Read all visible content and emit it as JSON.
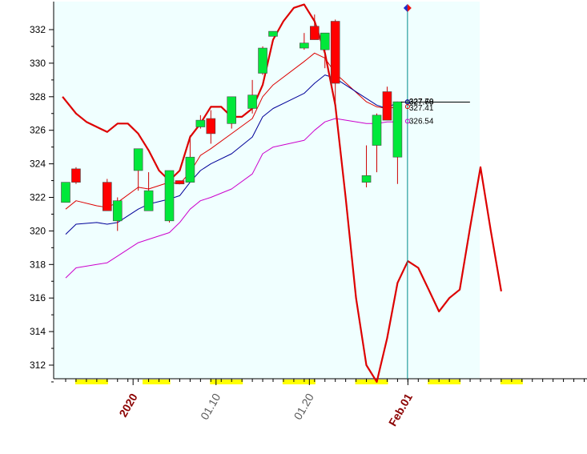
{
  "chart_data": {
    "type": "candlestick",
    "title": "",
    "xlabel": "",
    "ylabel": "",
    "ylim": [
      311,
      333.5
    ],
    "y_ticks": [
      312,
      314,
      316,
      318,
      320,
      322,
      324,
      326,
      328,
      330,
      332
    ],
    "y_tick_labels": [
      "312",
      "314",
      "316",
      "318",
      "320",
      "322",
      "324",
      "326",
      "328",
      "330",
      "332"
    ],
    "x_tick_labels": [
      {
        "text": "2020",
        "index": 6.5,
        "emphasis": true
      },
      {
        "text": "01.10",
        "index": 14.5,
        "emphasis": false
      },
      {
        "text": "01.20",
        "index": 23.5,
        "emphasis": false
      },
      {
        "text": "Feb.01",
        "index": 33,
        "emphasis": true
      }
    ],
    "grid": false,
    "legend": "none",
    "colors": {
      "plot_background": "#f0ffff",
      "up_candle": "#00e83a",
      "down_candle": "#ff0000",
      "wick": "#cc0000",
      "upper_band": "#dd0000",
      "middle_band": "#000099",
      "lower_band": "#cc00cc",
      "cycle_line": "#dd0000",
      "cursor_line": "#008b8b",
      "weekend_marker": "#ffff00"
    },
    "candles": [
      {
        "i": 0,
        "open": 321.7,
        "high": 322.9,
        "low": 321.7,
        "close": 322.9
      },
      {
        "i": 1,
        "open": 323.7,
        "high": 323.8,
        "low": 322.8,
        "close": 322.9
      },
      {
        "i": 4,
        "open": 322.9,
        "high": 323.1,
        "low": 321.2,
        "close": 321.2
      },
      {
        "i": 5,
        "open": 320.6,
        "high": 322.0,
        "low": 320.0,
        "close": 321.8
      },
      {
        "i": 7,
        "open": 323.6,
        "high": 324.9,
        "low": 322.4,
        "close": 324.9
      },
      {
        "i": 8,
        "open": 321.2,
        "high": 323.5,
        "low": 321.2,
        "close": 322.4
      },
      {
        "i": 10,
        "open": 320.6,
        "high": 323.6,
        "low": 320.5,
        "close": 323.6
      },
      {
        "i": 11,
        "open": 323.0,
        "high": 323.0,
        "low": 322.8,
        "close": 322.8
      },
      {
        "i": 12,
        "open": 322.9,
        "high": 325.7,
        "low": 322.9,
        "close": 324.4
      },
      {
        "i": 13,
        "open": 326.2,
        "high": 326.9,
        "low": 326.1,
        "close": 326.6
      },
      {
        "i": 14,
        "open": 326.7,
        "high": 327.2,
        "low": 325.2,
        "close": 325.8
      },
      {
        "i": 16,
        "open": 326.4,
        "high": 328.0,
        "low": 326.1,
        "close": 328.0
      },
      {
        "i": 18,
        "open": 327.3,
        "high": 329.0,
        "low": 327.0,
        "close": 328.1
      },
      {
        "i": 19,
        "open": 329.4,
        "high": 331.0,
        "low": 329.3,
        "close": 330.9
      },
      {
        "i": 20,
        "open": 331.6,
        "high": 331.9,
        "low": 331.6,
        "close": 331.9
      },
      {
        "i": 23,
        "open": 330.9,
        "high": 331.8,
        "low": 330.8,
        "close": 331.2
      },
      {
        "i": 24,
        "open": 332.2,
        "high": 332.9,
        "low": 331.4,
        "close": 331.4
      },
      {
        "i": 25,
        "open": 330.8,
        "high": 331.8,
        "low": 329.7,
        "close": 331.8
      },
      {
        "i": 26,
        "open": 332.5,
        "high": 332.6,
        "low": 327.3,
        "close": 328.8
      },
      {
        "i": 29,
        "open": 322.9,
        "high": 325.1,
        "low": 322.6,
        "close": 323.3
      },
      {
        "i": 30,
        "open": 325.1,
        "high": 327.0,
        "low": 323.5,
        "close": 326.9
      },
      {
        "i": 31,
        "open": 328.3,
        "high": 328.6,
        "low": 326.6,
        "close": 326.6
      },
      {
        "i": 32,
        "open": 324.4,
        "high": 327.7,
        "low": 322.8,
        "close": 327.7
      }
    ],
    "series": [
      {
        "points": [
          [
            0,
            321.3
          ],
          [
            1,
            321.8
          ],
          [
            3,
            321.5
          ],
          [
            4,
            321.4
          ],
          [
            5,
            321.7
          ],
          [
            7,
            322.6
          ],
          [
            8,
            322.5
          ],
          [
            10,
            322.9
          ],
          [
            11,
            322.8
          ],
          [
            12,
            323.5
          ],
          [
            13,
            324.5
          ],
          [
            14,
            324.9
          ],
          [
            16,
            325.8
          ],
          [
            18,
            326.7
          ],
          [
            19,
            328.0
          ],
          [
            20,
            328.7
          ],
          [
            23,
            330.1
          ],
          [
            24,
            330.6
          ],
          [
            25,
            330.3
          ],
          [
            26,
            329.4
          ],
          [
            29,
            327.7
          ],
          [
            30,
            327.4
          ],
          [
            31,
            327.3
          ],
          [
            32,
            327.4
          ]
        ]
      },
      {
        "points": [
          [
            0,
            319.8
          ],
          [
            1,
            320.4
          ],
          [
            3,
            320.5
          ],
          [
            4,
            320.4
          ],
          [
            5,
            320.5
          ],
          [
            7,
            321.3
          ],
          [
            8,
            321.6
          ],
          [
            10,
            321.9
          ],
          [
            11,
            322.1
          ],
          [
            12,
            322.9
          ],
          [
            13,
            323.6
          ],
          [
            14,
            324.0
          ],
          [
            16,
            324.6
          ],
          [
            18,
            325.6
          ],
          [
            19,
            326.8
          ],
          [
            20,
            327.3
          ],
          [
            23,
            328.2
          ],
          [
            24,
            328.8
          ],
          [
            25,
            329.3
          ],
          [
            26,
            329.1
          ],
          [
            29,
            327.9
          ],
          [
            30,
            327.5
          ],
          [
            31,
            327.3
          ],
          [
            32,
            327.7
          ]
        ]
      },
      {
        "points": [
          [
            0,
            317.2
          ],
          [
            1,
            317.8
          ],
          [
            3,
            318.0
          ],
          [
            4,
            318.1
          ],
          [
            5,
            318.5
          ],
          [
            7,
            319.3
          ],
          [
            8,
            319.5
          ],
          [
            10,
            319.9
          ],
          [
            11,
            320.5
          ],
          [
            12,
            321.3
          ],
          [
            13,
            321.8
          ],
          [
            14,
            322.0
          ],
          [
            16,
            322.5
          ],
          [
            18,
            323.4
          ],
          [
            19,
            324.6
          ],
          [
            20,
            325.0
          ],
          [
            23,
            325.4
          ],
          [
            24,
            326.0
          ],
          [
            25,
            326.5
          ],
          [
            26,
            326.7
          ],
          [
            29,
            326.4
          ],
          [
            30,
            326.4
          ],
          [
            31,
            326.5
          ],
          [
            32,
            326.5
          ]
        ]
      },
      {
        "points": [
          [
            -0.3,
            328.0
          ],
          [
            1,
            327.0
          ],
          [
            2,
            326.5
          ],
          [
            4,
            325.9
          ],
          [
            5,
            326.4
          ],
          [
            6,
            326.4
          ],
          [
            7,
            325.8
          ],
          [
            8,
            324.8
          ],
          [
            9,
            323.6
          ],
          [
            10,
            323.0
          ],
          [
            11,
            323.6
          ],
          [
            12,
            325.6
          ],
          [
            13,
            326.4
          ],
          [
            14,
            327.4
          ],
          [
            15,
            327.4
          ],
          [
            16,
            326.8
          ],
          [
            17,
            326.8
          ],
          [
            18,
            327.3
          ],
          [
            19,
            328.7
          ],
          [
            20,
            331.4
          ],
          [
            21,
            332.5
          ],
          [
            22,
            333.3
          ],
          [
            23,
            333.5
          ],
          [
            24,
            332.5
          ],
          [
            25,
            330.6
          ],
          [
            26,
            327.5
          ],
          [
            27,
            322.0
          ],
          [
            28,
            316.0
          ],
          [
            29,
            312.0
          ],
          [
            30,
            311.0
          ],
          [
            31,
            313.6
          ],
          [
            32,
            316.9
          ],
          [
            33,
            318.2
          ],
          [
            34,
            317.8
          ],
          [
            35,
            316.5
          ],
          [
            36,
            315.2
          ],
          [
            37,
            316.0
          ],
          [
            38,
            316.5
          ],
          [
            39,
            320.2
          ],
          [
            40,
            323.8
          ],
          [
            41,
            320.0
          ],
          [
            42,
            316.4
          ]
        ]
      }
    ],
    "value_labels": [
      {
        "text": "327.68",
        "value": 327.68
      },
      {
        "text": "327.70",
        "value": 327.7
      },
      {
        "text": "327.41",
        "value": 327.41
      },
      {
        "text": "326.54",
        "value": 326.54
      }
    ],
    "cursor_index": 33,
    "weekend_marker_indices": [
      2,
      3,
      8.5,
      9,
      15,
      16,
      22,
      23,
      29,
      30,
      36,
      37,
      43
    ]
  }
}
